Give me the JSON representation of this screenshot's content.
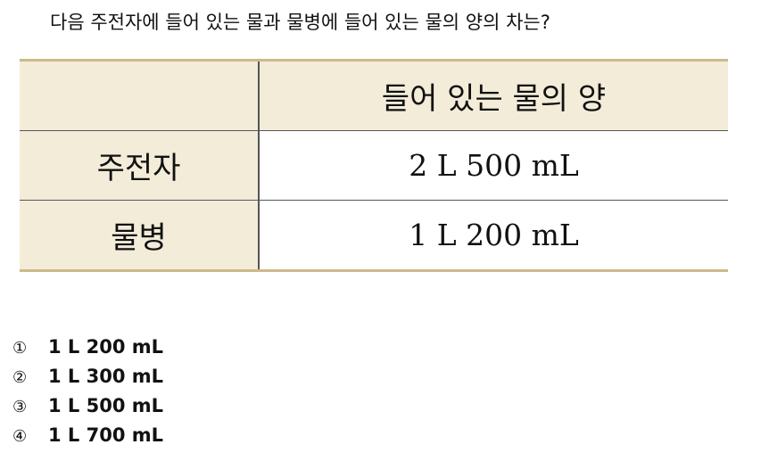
{
  "question": "다음 주전자에 들어 있는 물과 물병에 들어 있는 물의 양의 차는?",
  "table": {
    "header_blank": "",
    "header_amount": "들어 있는 물의 양",
    "rows": [
      {
        "label": "주전자",
        "value": "2 L 500 mL"
      },
      {
        "label": "물병",
        "value": "1 L 200 mL"
      }
    ]
  },
  "choices": [
    {
      "num": "①",
      "text": "1 L 200 mL"
    },
    {
      "num": "②",
      "text": "1 L 300 mL"
    },
    {
      "num": "③",
      "text": "1 L 500 mL"
    },
    {
      "num": "④",
      "text": "1 L 700 mL"
    }
  ]
}
